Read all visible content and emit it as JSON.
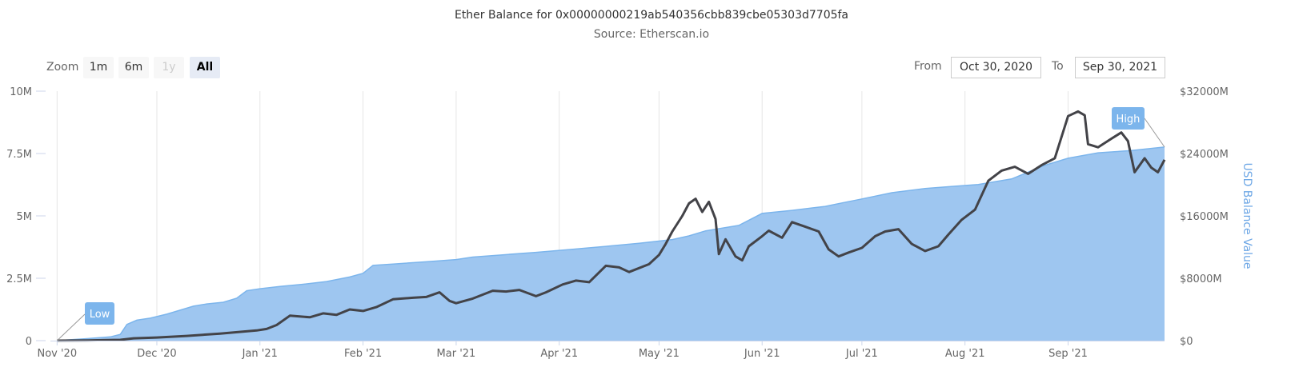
{
  "header": {
    "title": "Ether Balance for 0x00000000219ab540356cbb839cbe05303d7705fa",
    "subtitle": "Source: Etherscan.io"
  },
  "controls": {
    "zoom_label": "Zoom",
    "zoom_buttons": [
      {
        "label": "1m",
        "state": "normal"
      },
      {
        "label": "6m",
        "state": "normal"
      },
      {
        "label": "1y",
        "state": "disabled"
      },
      {
        "label": "All",
        "state": "active"
      }
    ],
    "from_label": "From",
    "from_value": "Oct 30, 2020",
    "to_label": "To",
    "to_value": "Sep 30, 2021"
  },
  "colors": {
    "area_fill": "#9ec6f0",
    "area_line": "#7cb5ec",
    "balance_line": "#434348",
    "grid": "#e6e6e6",
    "flag": "#7cb5ec"
  },
  "chart_data": {
    "type": "area",
    "x_ticks": [
      "Nov '20",
      "Dec '20",
      "Jan '21",
      "Feb '21",
      "Mar '21",
      "Apr '21",
      "May '21",
      "Jun '21",
      "Jul '21",
      "Aug '21",
      "Sep '21"
    ],
    "x_range": [
      "2020-10-30",
      "2021-09-30"
    ],
    "y_left": {
      "ticks": [
        "0",
        "2.5M",
        "5M",
        "7.5M",
        "10M"
      ],
      "range": [
        0,
        10000000
      ]
    },
    "y_right": {
      "ticks": [
        "$0",
        "$8000M",
        "$16000M",
        "$24000M",
        "$32000M"
      ],
      "range": [
        0,
        32000
      ],
      "label": "USD Balance Value"
    },
    "series": [
      {
        "type": "area",
        "axis": "left",
        "points": [
          [
            "2020-11-01",
            0
          ],
          [
            "2020-11-04",
            30000
          ],
          [
            "2020-11-10",
            80000
          ],
          [
            "2020-11-17",
            150000
          ],
          [
            "2020-11-20",
            250000
          ],
          [
            "2020-11-22",
            650000
          ],
          [
            "2020-11-25",
            820000
          ],
          [
            "2020-11-29",
            900000
          ],
          [
            "2020-12-04",
            1060000
          ],
          [
            "2020-12-08",
            1220000
          ],
          [
            "2020-12-12",
            1380000
          ],
          [
            "2020-12-16",
            1470000
          ],
          [
            "2020-12-21",
            1540000
          ],
          [
            "2020-12-25",
            1700000
          ],
          [
            "2020-12-28",
            2000000
          ],
          [
            "2021-01-01",
            2080000
          ],
          [
            "2021-01-07",
            2170000
          ],
          [
            "2021-01-14",
            2260000
          ],
          [
            "2021-01-21",
            2370000
          ],
          [
            "2021-01-28",
            2550000
          ],
          [
            "2021-02-01",
            2700000
          ],
          [
            "2021-02-04",
            3020000
          ],
          [
            "2021-02-10",
            3070000
          ],
          [
            "2021-02-20",
            3160000
          ],
          [
            "2021-03-01",
            3250000
          ],
          [
            "2021-03-06",
            3350000
          ],
          [
            "2021-03-15",
            3440000
          ],
          [
            "2021-03-25",
            3540000
          ],
          [
            "2021-04-05",
            3660000
          ],
          [
            "2021-04-15",
            3780000
          ],
          [
            "2021-04-25",
            3900000
          ],
          [
            "2021-05-05",
            4050000
          ],
          [
            "2021-05-10",
            4200000
          ],
          [
            "2021-05-15",
            4400000
          ],
          [
            "2021-05-25",
            4620000
          ],
          [
            "2021-06-01",
            5100000
          ],
          [
            "2021-06-10",
            5220000
          ],
          [
            "2021-06-20",
            5380000
          ],
          [
            "2021-06-25",
            5520000
          ],
          [
            "2021-07-01",
            5680000
          ],
          [
            "2021-07-10",
            5930000
          ],
          [
            "2021-07-20",
            6100000
          ],
          [
            "2021-07-27",
            6170000
          ],
          [
            "2021-08-05",
            6260000
          ],
          [
            "2021-08-15",
            6480000
          ],
          [
            "2021-08-25",
            7030000
          ],
          [
            "2021-09-01",
            7310000
          ],
          [
            "2021-09-10",
            7530000
          ],
          [
            "2021-09-20",
            7620000
          ],
          [
            "2021-09-30",
            7760000
          ]
        ]
      },
      {
        "type": "line",
        "axis": "right",
        "points": [
          [
            "2020-11-01",
            0
          ],
          [
            "2020-11-10",
            30
          ],
          [
            "2020-11-20",
            100
          ],
          [
            "2020-11-24",
            300
          ],
          [
            "2020-12-01",
            400
          ],
          [
            "2020-12-10",
            600
          ],
          [
            "2020-12-20",
            900
          ],
          [
            "2020-12-31",
            1300
          ],
          [
            "2021-01-03",
            1500
          ],
          [
            "2021-01-06",
            2000
          ],
          [
            "2021-01-10",
            3200
          ],
          [
            "2021-01-16",
            3000
          ],
          [
            "2021-01-20",
            3500
          ],
          [
            "2021-01-24",
            3300
          ],
          [
            "2021-01-28",
            4000
          ],
          [
            "2021-02-01",
            3800
          ],
          [
            "2021-02-05",
            4300
          ],
          [
            "2021-02-10",
            5300
          ],
          [
            "2021-02-16",
            5500
          ],
          [
            "2021-02-20",
            5600
          ],
          [
            "2021-02-24",
            6200
          ],
          [
            "2021-02-27",
            5100
          ],
          [
            "2021-03-01",
            4800
          ],
          [
            "2021-03-06",
            5400
          ],
          [
            "2021-03-12",
            6400
          ],
          [
            "2021-03-16",
            6300
          ],
          [
            "2021-03-20",
            6500
          ],
          [
            "2021-03-25",
            5700
          ],
          [
            "2021-03-28",
            6200
          ],
          [
            "2021-04-02",
            7200
          ],
          [
            "2021-04-06",
            7700
          ],
          [
            "2021-04-10",
            7500
          ],
          [
            "2021-04-15",
            9600
          ],
          [
            "2021-04-19",
            9400
          ],
          [
            "2021-04-22",
            8800
          ],
          [
            "2021-04-28",
            9800
          ],
          [
            "2021-05-01",
            11000
          ],
          [
            "2021-05-03",
            12400
          ],
          [
            "2021-05-05",
            14000
          ],
          [
            "2021-05-08",
            16000
          ],
          [
            "2021-05-10",
            17600
          ],
          [
            "2021-05-12",
            18200
          ],
          [
            "2021-05-14",
            16500
          ],
          [
            "2021-05-16",
            17800
          ],
          [
            "2021-05-18",
            15600
          ],
          [
            "2021-05-19",
            11100
          ],
          [
            "2021-05-21",
            13000
          ],
          [
            "2021-05-24",
            10800
          ],
          [
            "2021-05-26",
            10300
          ],
          [
            "2021-05-28",
            12100
          ],
          [
            "2021-06-01",
            13400
          ],
          [
            "2021-06-03",
            14100
          ],
          [
            "2021-06-07",
            13200
          ],
          [
            "2021-06-10",
            15200
          ],
          [
            "2021-06-14",
            14600
          ],
          [
            "2021-06-18",
            14000
          ],
          [
            "2021-06-21",
            11700
          ],
          [
            "2021-06-24",
            10800
          ],
          [
            "2021-06-27",
            11300
          ],
          [
            "2021-07-01",
            11900
          ],
          [
            "2021-07-05",
            13400
          ],
          [
            "2021-07-08",
            14000
          ],
          [
            "2021-07-12",
            14300
          ],
          [
            "2021-07-16",
            12400
          ],
          [
            "2021-07-20",
            11500
          ],
          [
            "2021-07-24",
            12100
          ],
          [
            "2021-07-27",
            13600
          ],
          [
            "2021-07-31",
            15500
          ],
          [
            "2021-08-04",
            16800
          ],
          [
            "2021-08-08",
            20500
          ],
          [
            "2021-08-12",
            21800
          ],
          [
            "2021-08-16",
            22300
          ],
          [
            "2021-08-20",
            21400
          ],
          [
            "2021-08-24",
            22500
          ],
          [
            "2021-08-28",
            23400
          ],
          [
            "2021-09-01",
            28800
          ],
          [
            "2021-09-04",
            29400
          ],
          [
            "2021-09-06",
            28900
          ],
          [
            "2021-09-07",
            25200
          ],
          [
            "2021-09-10",
            24800
          ],
          [
            "2021-09-14",
            25900
          ],
          [
            "2021-09-17",
            26700
          ],
          [
            "2021-09-19",
            25600
          ],
          [
            "2021-09-21",
            21600
          ],
          [
            "2021-09-24",
            23400
          ],
          [
            "2021-09-26",
            22200
          ],
          [
            "2021-09-28",
            21600
          ],
          [
            "2021-09-30",
            23200
          ]
        ]
      }
    ],
    "flags": [
      {
        "label": "Low",
        "date": "2020-11-01",
        "value": 0
      },
      {
        "label": "High",
        "date": "2021-09-30",
        "value": 7760000
      }
    ]
  }
}
